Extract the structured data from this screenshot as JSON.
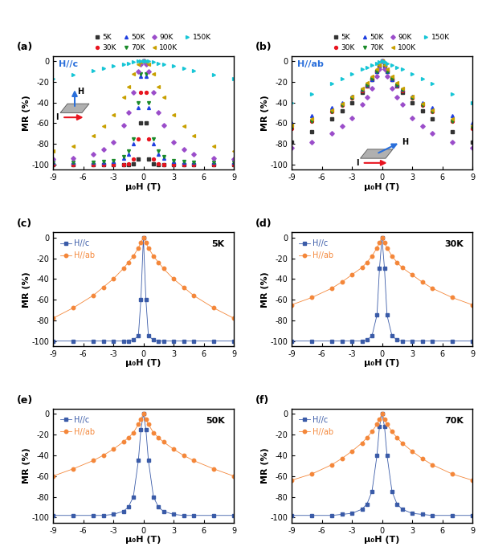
{
  "chart_data": [
    {
      "type": "line",
      "panel": "(a)",
      "annotations": [
        "H//c"
      ],
      "inset_labels": [
        "H",
        "I"
      ],
      "x_label": "μ₀H (T)",
      "y_label": "MR (%)",
      "x": [
        -9,
        -7,
        -5,
        -4,
        -3,
        -2,
        -1.5,
        -1,
        -0.5,
        -0.25,
        0,
        0.25,
        0.5,
        1,
        1.5,
        2,
        3,
        4,
        5,
        7,
        9
      ],
      "xlim": [
        -9,
        9
      ],
      "ylim": [
        -105,
        5
      ],
      "xticks": [
        -9,
        -6,
        -3,
        0,
        3,
        6,
        9
      ],
      "yticks": [
        -100,
        -80,
        -60,
        -40,
        -20,
        0
      ],
      "legend": "above",
      "series": [
        {
          "name": "5K",
          "color": "#333333",
          "marker": "square",
          "line_style": "none",
          "values": [
            -100,
            -100,
            -100,
            -100,
            -100,
            -100,
            -100,
            -99,
            -95,
            -60,
            0,
            -60,
            -95,
            -99,
            -100,
            -100,
            -100,
            -100,
            -100,
            -100,
            -100
          ]
        },
        {
          "name": "30K",
          "color": "#e8141f",
          "marker": "circle",
          "line_style": "none",
          "values": [
            -100,
            -100,
            -100,
            -100,
            -100,
            -100,
            -99,
            -95,
            -75,
            -30,
            0,
            -30,
            -75,
            -95,
            -99,
            -100,
            -100,
            -100,
            -100,
            -100,
            -100
          ]
        },
        {
          "name": "50K",
          "color": "#1f3fe0",
          "marker": "triangle_up",
          "line_style": "none",
          "values": [
            -98,
            -98,
            -98,
            -98,
            -97,
            -94,
            -90,
            -80,
            -45,
            -15,
            0,
            -15,
            -45,
            -80,
            -90,
            -94,
            -97,
            -98,
            -98,
            -98,
            -98
          ]
        },
        {
          "name": "70K",
          "color": "#1a8a2a",
          "marker": "triangle_down",
          "line_style": "none",
          "values": [
            -98,
            -98,
            -98,
            -97,
            -96,
            -92,
            -87,
            -75,
            -40,
            -12,
            0,
            -12,
            -40,
            -75,
            -87,
            -92,
            -96,
            -97,
            -98,
            -98,
            -98
          ]
        },
        {
          "name": "90K",
          "color": "#9b4dca",
          "marker": "diamond",
          "line_style": "none",
          "values": [
            -95,
            -94,
            -90,
            -85,
            -78,
            -62,
            -50,
            -30,
            -10,
            -3,
            0,
            -3,
            -10,
            -30,
            -50,
            -62,
            -78,
            -85,
            -90,
            -94,
            -95
          ]
        },
        {
          "name": "100K",
          "color": "#c8a000",
          "marker": "triangle_left",
          "line_style": "none",
          "values": [
            -87,
            -82,
            -72,
            -63,
            -52,
            -35,
            -25,
            -12,
            -3,
            -1,
            0,
            -1,
            -3,
            -12,
            -25,
            -35,
            -52,
            -63,
            -72,
            -82,
            -87
          ]
        },
        {
          "name": "150K",
          "color": "#17c6d6",
          "marker": "triangle_right",
          "line_style": "none",
          "values": [
            -17,
            -13,
            -9,
            -7,
            -5,
            -3,
            -2,
            -1,
            0,
            0,
            0,
            0,
            0,
            -1,
            -2,
            -3,
            -5,
            -7,
            -9,
            -13,
            -17
          ]
        }
      ]
    },
    {
      "type": "line",
      "panel": "(b)",
      "annotations": [
        "H//ab"
      ],
      "inset_labels": [
        "H",
        "I"
      ],
      "x_label": "μ₀H (T)",
      "y_label": "MR (%)",
      "x": [
        -9,
        -7,
        -5,
        -4,
        -3,
        -2,
        -1.5,
        -1,
        -0.5,
        -0.25,
        0,
        0.25,
        0.5,
        1,
        1.5,
        2,
        3,
        4,
        5,
        7,
        9
      ],
      "xlim": [
        -9,
        9
      ],
      "ylim": [
        -105,
        5
      ],
      "xticks": [
        -9,
        -6,
        -3,
        0,
        3,
        6,
        9
      ],
      "yticks": [
        -100,
        -80,
        -60,
        -40,
        -20,
        0
      ],
      "legend": "above",
      "series": [
        {
          "name": "5K",
          "color": "#333333",
          "marker": "square",
          "line_style": "none",
          "values": [
            -78,
            -68,
            -56,
            -48,
            -40,
            -30,
            -24,
            -18,
            -10,
            -5,
            0,
            -5,
            -10,
            -18,
            -24,
            -30,
            -40,
            -48,
            -56,
            -68,
            -78
          ]
        },
        {
          "name": "30K",
          "color": "#e8141f",
          "marker": "circle",
          "line_style": "none",
          "values": [
            -65,
            -58,
            -49,
            -43,
            -36,
            -29,
            -24,
            -18,
            -10,
            -5,
            0,
            -5,
            -10,
            -18,
            -24,
            -29,
            -36,
            -43,
            -49,
            -58,
            -65
          ]
        },
        {
          "name": "50K",
          "color": "#1f3fe0",
          "marker": "triangle_up",
          "line_style": "none",
          "values": [
            -60,
            -53,
            -45,
            -40,
            -34,
            -27,
            -23,
            -18,
            -10,
            -5,
            0,
            -5,
            -10,
            -18,
            -23,
            -27,
            -34,
            -40,
            -45,
            -53,
            -60
          ]
        },
        {
          "name": "70K",
          "color": "#1a8a2a",
          "marker": "triangle_down",
          "line_style": "none",
          "values": [
            -64,
            -58,
            -49,
            -43,
            -36,
            -28,
            -23,
            -17,
            -10,
            -5,
            0,
            -5,
            -10,
            -17,
            -23,
            -28,
            -36,
            -43,
            -49,
            -58,
            -64
          ]
        },
        {
          "name": "90K",
          "color": "#9b4dca",
          "marker": "diamond",
          "line_style": "none",
          "values": [
            -84,
            -78,
            -70,
            -63,
            -55,
            -42,
            -35,
            -26,
            -15,
            -8,
            0,
            -8,
            -15,
            -26,
            -35,
            -42,
            -55,
            -63,
            -70,
            -78,
            -84
          ]
        },
        {
          "name": "100K",
          "color": "#c8a000",
          "marker": "triangle_left",
          "line_style": "none",
          "values": [
            -62,
            -56,
            -47,
            -41,
            -34,
            -26,
            -21,
            -15,
            -8,
            -4,
            0,
            -4,
            -8,
            -15,
            -21,
            -26,
            -34,
            -41,
            -47,
            -56,
            -62
          ]
        },
        {
          "name": "150K",
          "color": "#17c6d6",
          "marker": "triangle_right",
          "line_style": "none",
          "values": [
            -40,
            -32,
            -22,
            -17,
            -12,
            -8,
            -6,
            -4,
            -2,
            -1,
            0,
            -1,
            -2,
            -4,
            -6,
            -8,
            -12,
            -17,
            -22,
            -32,
            -40
          ]
        }
      ]
    },
    {
      "type": "line",
      "panel": "(c)",
      "annotations": [
        "5K"
      ],
      "x_label": "μ₀H (T)",
      "y_label": "MR (%)",
      "x": [
        -9,
        -7,
        -5,
        -4,
        -3,
        -2,
        -1.5,
        -1,
        -0.5,
        -0.25,
        0,
        0.25,
        0.5,
        1,
        1.5,
        2,
        3,
        4,
        5,
        7,
        9
      ],
      "xlim": [
        -9,
        9
      ],
      "ylim": [
        -105,
        5
      ],
      "xticks": [
        -9,
        -6,
        -3,
        0,
        3,
        6,
        9
      ],
      "yticks": [
        -100,
        -80,
        -60,
        -40,
        -20,
        0
      ],
      "legend": "upper left",
      "series": [
        {
          "name": "H//c",
          "color": "#3a5ba8",
          "marker": "square",
          "line_style": "solid",
          "values": [
            -100,
            -100,
            -100,
            -100,
            -100,
            -100,
            -100,
            -99,
            -95,
            -60,
            0,
            -60,
            -95,
            -99,
            -100,
            -100,
            -100,
            -100,
            -100,
            -100,
            -100
          ]
        },
        {
          "name": "H//ab",
          "color": "#f4873a",
          "marker": "circle",
          "line_style": "solid",
          "values": [
            -78,
            -68,
            -56,
            -48,
            -40,
            -30,
            -24,
            -18,
            -10,
            -5,
            0,
            -5,
            -10,
            -18,
            -24,
            -30,
            -40,
            -48,
            -56,
            -68,
            -78
          ]
        }
      ]
    },
    {
      "type": "line",
      "panel": "(d)",
      "annotations": [
        "30K"
      ],
      "x_label": "μ₀H (T)",
      "y_label": "MR (%)",
      "x": [
        -9,
        -7,
        -5,
        -4,
        -3,
        -2,
        -1.5,
        -1,
        -0.5,
        -0.25,
        0,
        0.25,
        0.5,
        1,
        1.5,
        2,
        3,
        4,
        5,
        7,
        9
      ],
      "xlim": [
        -9,
        9
      ],
      "ylim": [
        -105,
        5
      ],
      "xticks": [
        -9,
        -6,
        -3,
        0,
        3,
        6,
        9
      ],
      "yticks": [
        -100,
        -80,
        -60,
        -40,
        -20,
        0
      ],
      "legend": "upper left",
      "series": [
        {
          "name": "H//c",
          "color": "#3a5ba8",
          "marker": "square",
          "line_style": "solid",
          "values": [
            -100,
            -100,
            -100,
            -100,
            -100,
            -100,
            -99,
            -95,
            -75,
            -30,
            0,
            -30,
            -75,
            -95,
            -99,
            -100,
            -100,
            -100,
            -100,
            -100,
            -100
          ]
        },
        {
          "name": "H//ab",
          "color": "#f4873a",
          "marker": "circle",
          "line_style": "solid",
          "values": [
            -65,
            -58,
            -49,
            -43,
            -36,
            -29,
            -24,
            -18,
            -10,
            -5,
            0,
            -5,
            -10,
            -18,
            -24,
            -29,
            -36,
            -43,
            -49,
            -58,
            -65
          ]
        }
      ]
    },
    {
      "type": "line",
      "panel": "(e)",
      "annotations": [
        "50K"
      ],
      "x_label": "μ₀H (T)",
      "y_label": "MR (%)",
      "x": [
        -9,
        -7,
        -5,
        -4,
        -3,
        -2,
        -1.5,
        -1,
        -0.5,
        -0.25,
        0,
        0.25,
        0.5,
        1,
        1.5,
        2,
        3,
        4,
        5,
        7,
        9
      ],
      "xlim": [
        -9,
        9
      ],
      "ylim": [
        -105,
        5
      ],
      "xticks": [
        -9,
        -6,
        -3,
        0,
        3,
        6,
        9
      ],
      "yticks": [
        -100,
        -80,
        -60,
        -40,
        -20,
        0
      ],
      "legend": "upper left",
      "series": [
        {
          "name": "H//c",
          "color": "#3a5ba8",
          "marker": "square",
          "line_style": "solid",
          "values": [
            -98,
            -98,
            -98,
            -98,
            -97,
            -94,
            -90,
            -80,
            -45,
            -15,
            0,
            -15,
            -45,
            -80,
            -90,
            -94,
            -97,
            -98,
            -98,
            -98,
            -98
          ]
        },
        {
          "name": "H//ab",
          "color": "#f4873a",
          "marker": "circle",
          "line_style": "solid",
          "values": [
            -60,
            -53,
            -45,
            -40,
            -34,
            -27,
            -23,
            -18,
            -10,
            -5,
            0,
            -5,
            -10,
            -18,
            -23,
            -27,
            -34,
            -40,
            -45,
            -53,
            -60
          ]
        }
      ]
    },
    {
      "type": "line",
      "panel": "(f)",
      "annotations": [
        "70K"
      ],
      "x_label": "μ₀H (T)",
      "y_label": "MR (%)",
      "x": [
        -9,
        -7,
        -5,
        -4,
        -3,
        -2,
        -1.5,
        -1,
        -0.5,
        -0.25,
        0,
        0.25,
        0.5,
        1,
        1.5,
        2,
        3,
        4,
        5,
        7,
        9
      ],
      "xlim": [
        -9,
        9
      ],
      "ylim": [
        -105,
        5
      ],
      "xticks": [
        -9,
        -6,
        -3,
        0,
        3,
        6,
        9
      ],
      "yticks": [
        -100,
        -80,
        -60,
        -40,
        -20,
        0
      ],
      "legend": "upper left",
      "series": [
        {
          "name": "H//c",
          "color": "#3a5ba8",
          "marker": "square",
          "line_style": "solid",
          "values": [
            -98,
            -98,
            -98,
            -97,
            -96,
            -92,
            -87,
            -75,
            -40,
            -12,
            0,
            -12,
            -40,
            -75,
            -87,
            -92,
            -96,
            -97,
            -98,
            -98,
            -98
          ]
        },
        {
          "name": "H//ab",
          "color": "#f4873a",
          "marker": "circle",
          "line_style": "solid",
          "values": [
            -64,
            -58,
            -49,
            -43,
            -36,
            -28,
            -23,
            -17,
            -10,
            -5,
            0,
            -5,
            -10,
            -17,
            -23,
            -28,
            -36,
            -43,
            -49,
            -58,
            -64
          ]
        }
      ]
    }
  ]
}
